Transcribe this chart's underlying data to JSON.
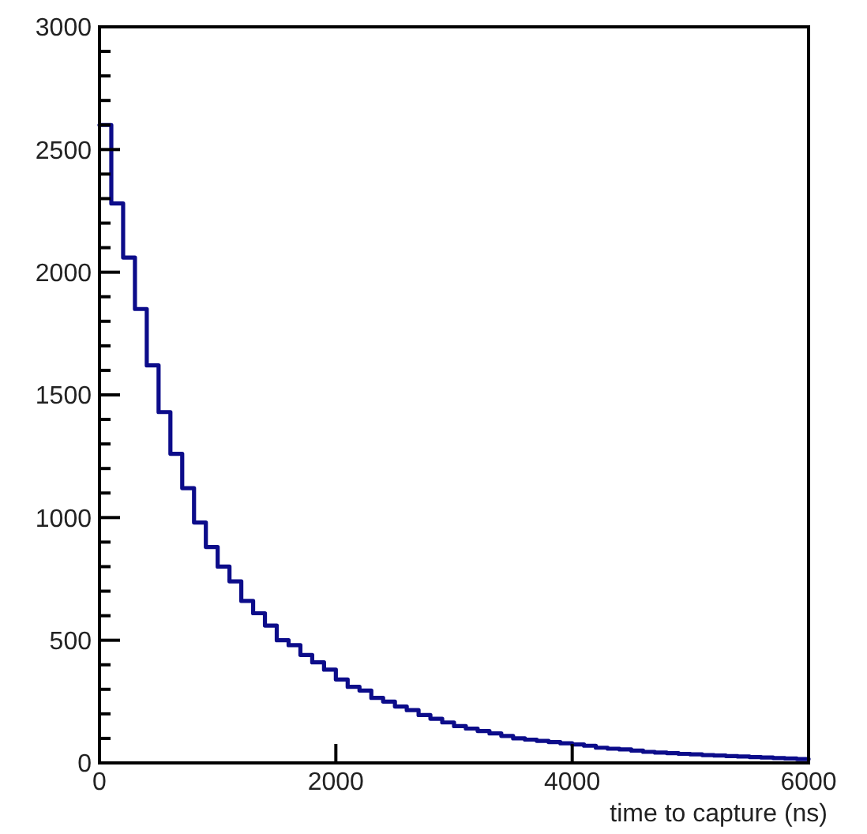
{
  "chart_data": {
    "type": "step",
    "xlabel": "time to capture (ns)",
    "x": [
      0,
      100,
      200,
      300,
      400,
      500,
      600,
      700,
      800,
      900,
      1000,
      1100,
      1200,
      1300,
      1400,
      1500,
      1600,
      1700,
      1800,
      1900,
      2000,
      2100,
      2200,
      2300,
      2400,
      2500,
      2600,
      2700,
      2800,
      2900,
      3000,
      3100,
      3200,
      3300,
      3400,
      3500,
      3600,
      3700,
      3800,
      3900,
      4000,
      4100,
      4200,
      4300,
      4400,
      4500,
      4600,
      4700,
      4800,
      4900,
      5000,
      5100,
      5200,
      5300,
      5400,
      5500,
      5600,
      5700,
      5800,
      5900,
      6000
    ],
    "series": [
      {
        "color": "#0c0c8a",
        "values": [
          2600,
          2280,
          2060,
          1850,
          1620,
          1430,
          1260,
          1120,
          980,
          880,
          800,
          740,
          660,
          610,
          560,
          500,
          480,
          440,
          410,
          380,
          340,
          310,
          295,
          265,
          250,
          230,
          215,
          195,
          180,
          165,
          150,
          140,
          130,
          120,
          110,
          100,
          95,
          90,
          85,
          80,
          75,
          70,
          62,
          58,
          55,
          50,
          45,
          42,
          40,
          37,
          35,
          32,
          30,
          28,
          26,
          24,
          22,
          20,
          18,
          16,
          16
        ]
      }
    ],
    "xlim": [
      0,
      6000
    ],
    "xticks": [
      0,
      2000,
      4000,
      6000
    ],
    "ylim": [
      0,
      3000
    ],
    "yticks": [
      0,
      {
        "value": 100,
        "label": null
      },
      {
        "value": 200,
        "label": null
      },
      {
        "value": 300,
        "label": null
      },
      {
        "value": 400,
        "label": null
      },
      500,
      {
        "value": 600,
        "label": null
      },
      {
        "value": 700,
        "label": null
      },
      {
        "value": 800,
        "label": null
      },
      {
        "value": 900,
        "label": null
      },
      1000,
      {
        "value": 1100,
        "label": null
      },
      {
        "value": 1200,
        "label": null
      },
      {
        "value": 1300,
        "label": null
      },
      {
        "value": 1400,
        "label": null
      },
      1500,
      {
        "value": 1600,
        "label": null
      },
      {
        "value": 1700,
        "label": null
      },
      {
        "value": 1800,
        "label": null
      },
      {
        "value": 1900,
        "label": null
      },
      2000,
      {
        "value": 2100,
        "label": null
      },
      {
        "value": 2200,
        "label": null
      },
      {
        "value": 2300,
        "label": null
      },
      {
        "value": 2400,
        "label": null
      },
      2500,
      {
        "value": 2600,
        "label": null
      },
      {
        "value": 2700,
        "label": null
      },
      {
        "value": 2800,
        "label": null
      },
      {
        "value": 2900,
        "label": null
      },
      3000
    ],
    "grid": false
  }
}
